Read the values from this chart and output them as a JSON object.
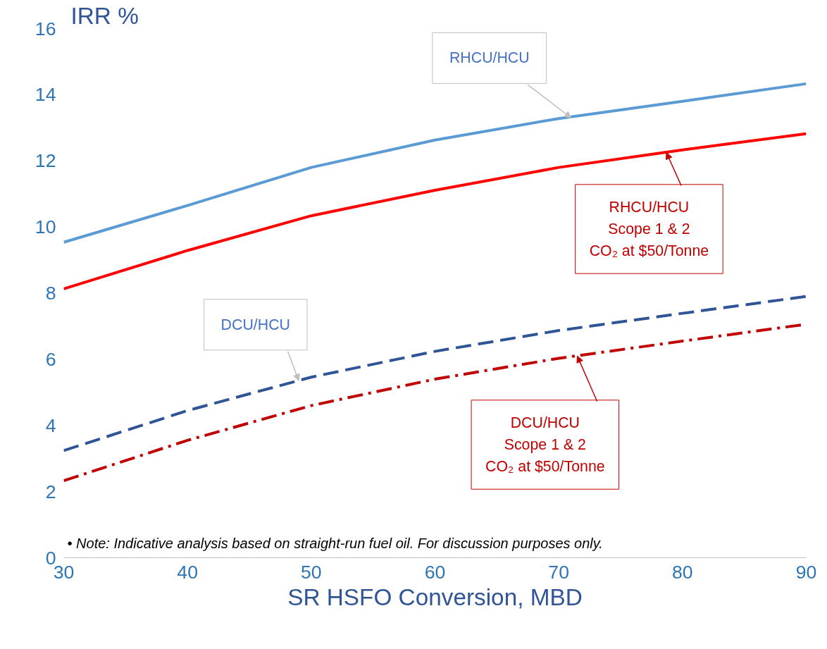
{
  "chart_data": {
    "type": "line",
    "ylabel": "IRR %",
    "xlabel": "SR HSFO Conversion, MBD",
    "x": [
      30,
      40,
      50,
      60,
      70,
      80,
      90
    ],
    "series": [
      {
        "color": "#5b9bd5",
        "line_style": "solid",
        "values": [
          9.54,
          10.65,
          11.8,
          12.63,
          13.28,
          13.8,
          14.33
        ]
      },
      {
        "color": "#ff0000",
        "line_style": "solid",
        "values": [
          8.13,
          9.29,
          10.34,
          11.11,
          11.8,
          12.33,
          12.82
        ]
      },
      {
        "color": "#2f5597",
        "line_style": "dashed",
        "values": [
          3.24,
          4.45,
          5.46,
          6.24,
          6.87,
          7.39,
          7.9
        ]
      },
      {
        "color": "#c00000",
        "line_style": "dashdot",
        "values": [
          2.33,
          3.55,
          4.6,
          5.4,
          6.03,
          6.55,
          7.06
        ]
      }
    ],
    "annotations": [
      {
        "text": "RHCU/HCU",
        "x": 71,
        "y": 13.3
      },
      {
        "text": "RHCU/HCU\nScope 1 & 2\nCO₂ at $50/Tonne",
        "x": 78.7,
        "y": 12.25
      },
      {
        "text": "DCU/HCU",
        "x": 49,
        "y": 5.35
      },
      {
        "text": "DCU/HCU\nScope 1 & 2\nCO₂ at $50/Tonne",
        "x": 71.5,
        "y": 6.1
      },
      "•   Note:  Indicative analysis based on straight-run fuel oil.  For discussion purposes only."
    ],
    "xlim": [
      30,
      90
    ],
    "ylim": [
      0,
      16
    ],
    "xticks": [
      30,
      40,
      50,
      60,
      70,
      80,
      90
    ],
    "yticks": [
      0,
      2,
      4,
      6,
      8,
      10,
      12,
      14,
      16
    ],
    "grid": false,
    "marker": "none"
  }
}
